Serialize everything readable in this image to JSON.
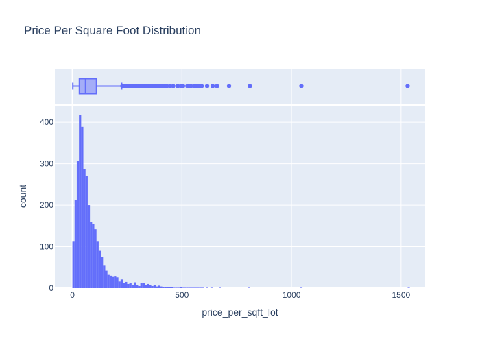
{
  "chart_data": {
    "type": "histogram",
    "title": "Price Per Square Foot Distribution",
    "xlabel": "price_per_sqft_lot",
    "ylabel": "count",
    "xlim": [
      -80,
      1610
    ],
    "ylim": [
      0,
      440
    ],
    "x_ticks": [
      0,
      500,
      1000,
      1500
    ],
    "x_tick_labels": [
      "0",
      "500",
      "1000",
      "1500"
    ],
    "y_ticks": [
      0,
      100,
      200,
      300,
      400
    ],
    "y_tick_labels": [
      "0",
      "100",
      "200",
      "300",
      "400"
    ],
    "grid": true,
    "legend": "none",
    "bar_color": "#636efa",
    "plot_bg": "#e5ecf6",
    "bin_width": 10,
    "bin_start": 0,
    "counts": [
      112,
      212,
      307,
      418,
      389,
      287,
      270,
      200,
      160,
      155,
      142,
      112,
      90,
      75,
      54,
      42,
      32,
      30,
      27,
      28,
      26,
      16,
      21,
      13,
      15,
      10,
      12,
      7,
      14,
      8,
      5,
      13,
      12,
      7,
      10,
      7,
      5,
      8,
      4,
      6,
      4,
      3,
      2,
      3,
      2,
      2,
      1,
      1,
      1,
      2,
      1,
      1,
      1,
      1,
      1,
      1,
      1,
      1,
      1,
      1,
      0,
      1,
      0,
      1,
      0,
      0,
      0,
      1,
      0,
      0,
      0,
      0,
      0,
      0,
      0,
      0,
      0,
      0,
      0,
      0,
      1
    ],
    "sparse_bins": [
      {
        "x": 1040,
        "count": 1
      },
      {
        "x": 1530,
        "count": 1
      }
    ],
    "box": {
      "lower_fence": 2,
      "q1": 32,
      "median": 60,
      "q3": 110,
      "upper_fence": 225,
      "outliers": [
        228,
        232,
        236,
        240,
        245,
        250,
        255,
        260,
        265,
        270,
        275,
        280,
        285,
        290,
        296,
        302,
        308,
        315,
        322,
        330,
        338,
        346,
        355,
        365,
        375,
        385,
        395,
        405,
        418,
        430,
        445,
        460,
        480,
        495,
        505,
        525,
        540,
        555,
        565,
        575,
        590,
        615,
        640,
        660,
        715,
        810,
        1045,
        1530
      ]
    }
  }
}
